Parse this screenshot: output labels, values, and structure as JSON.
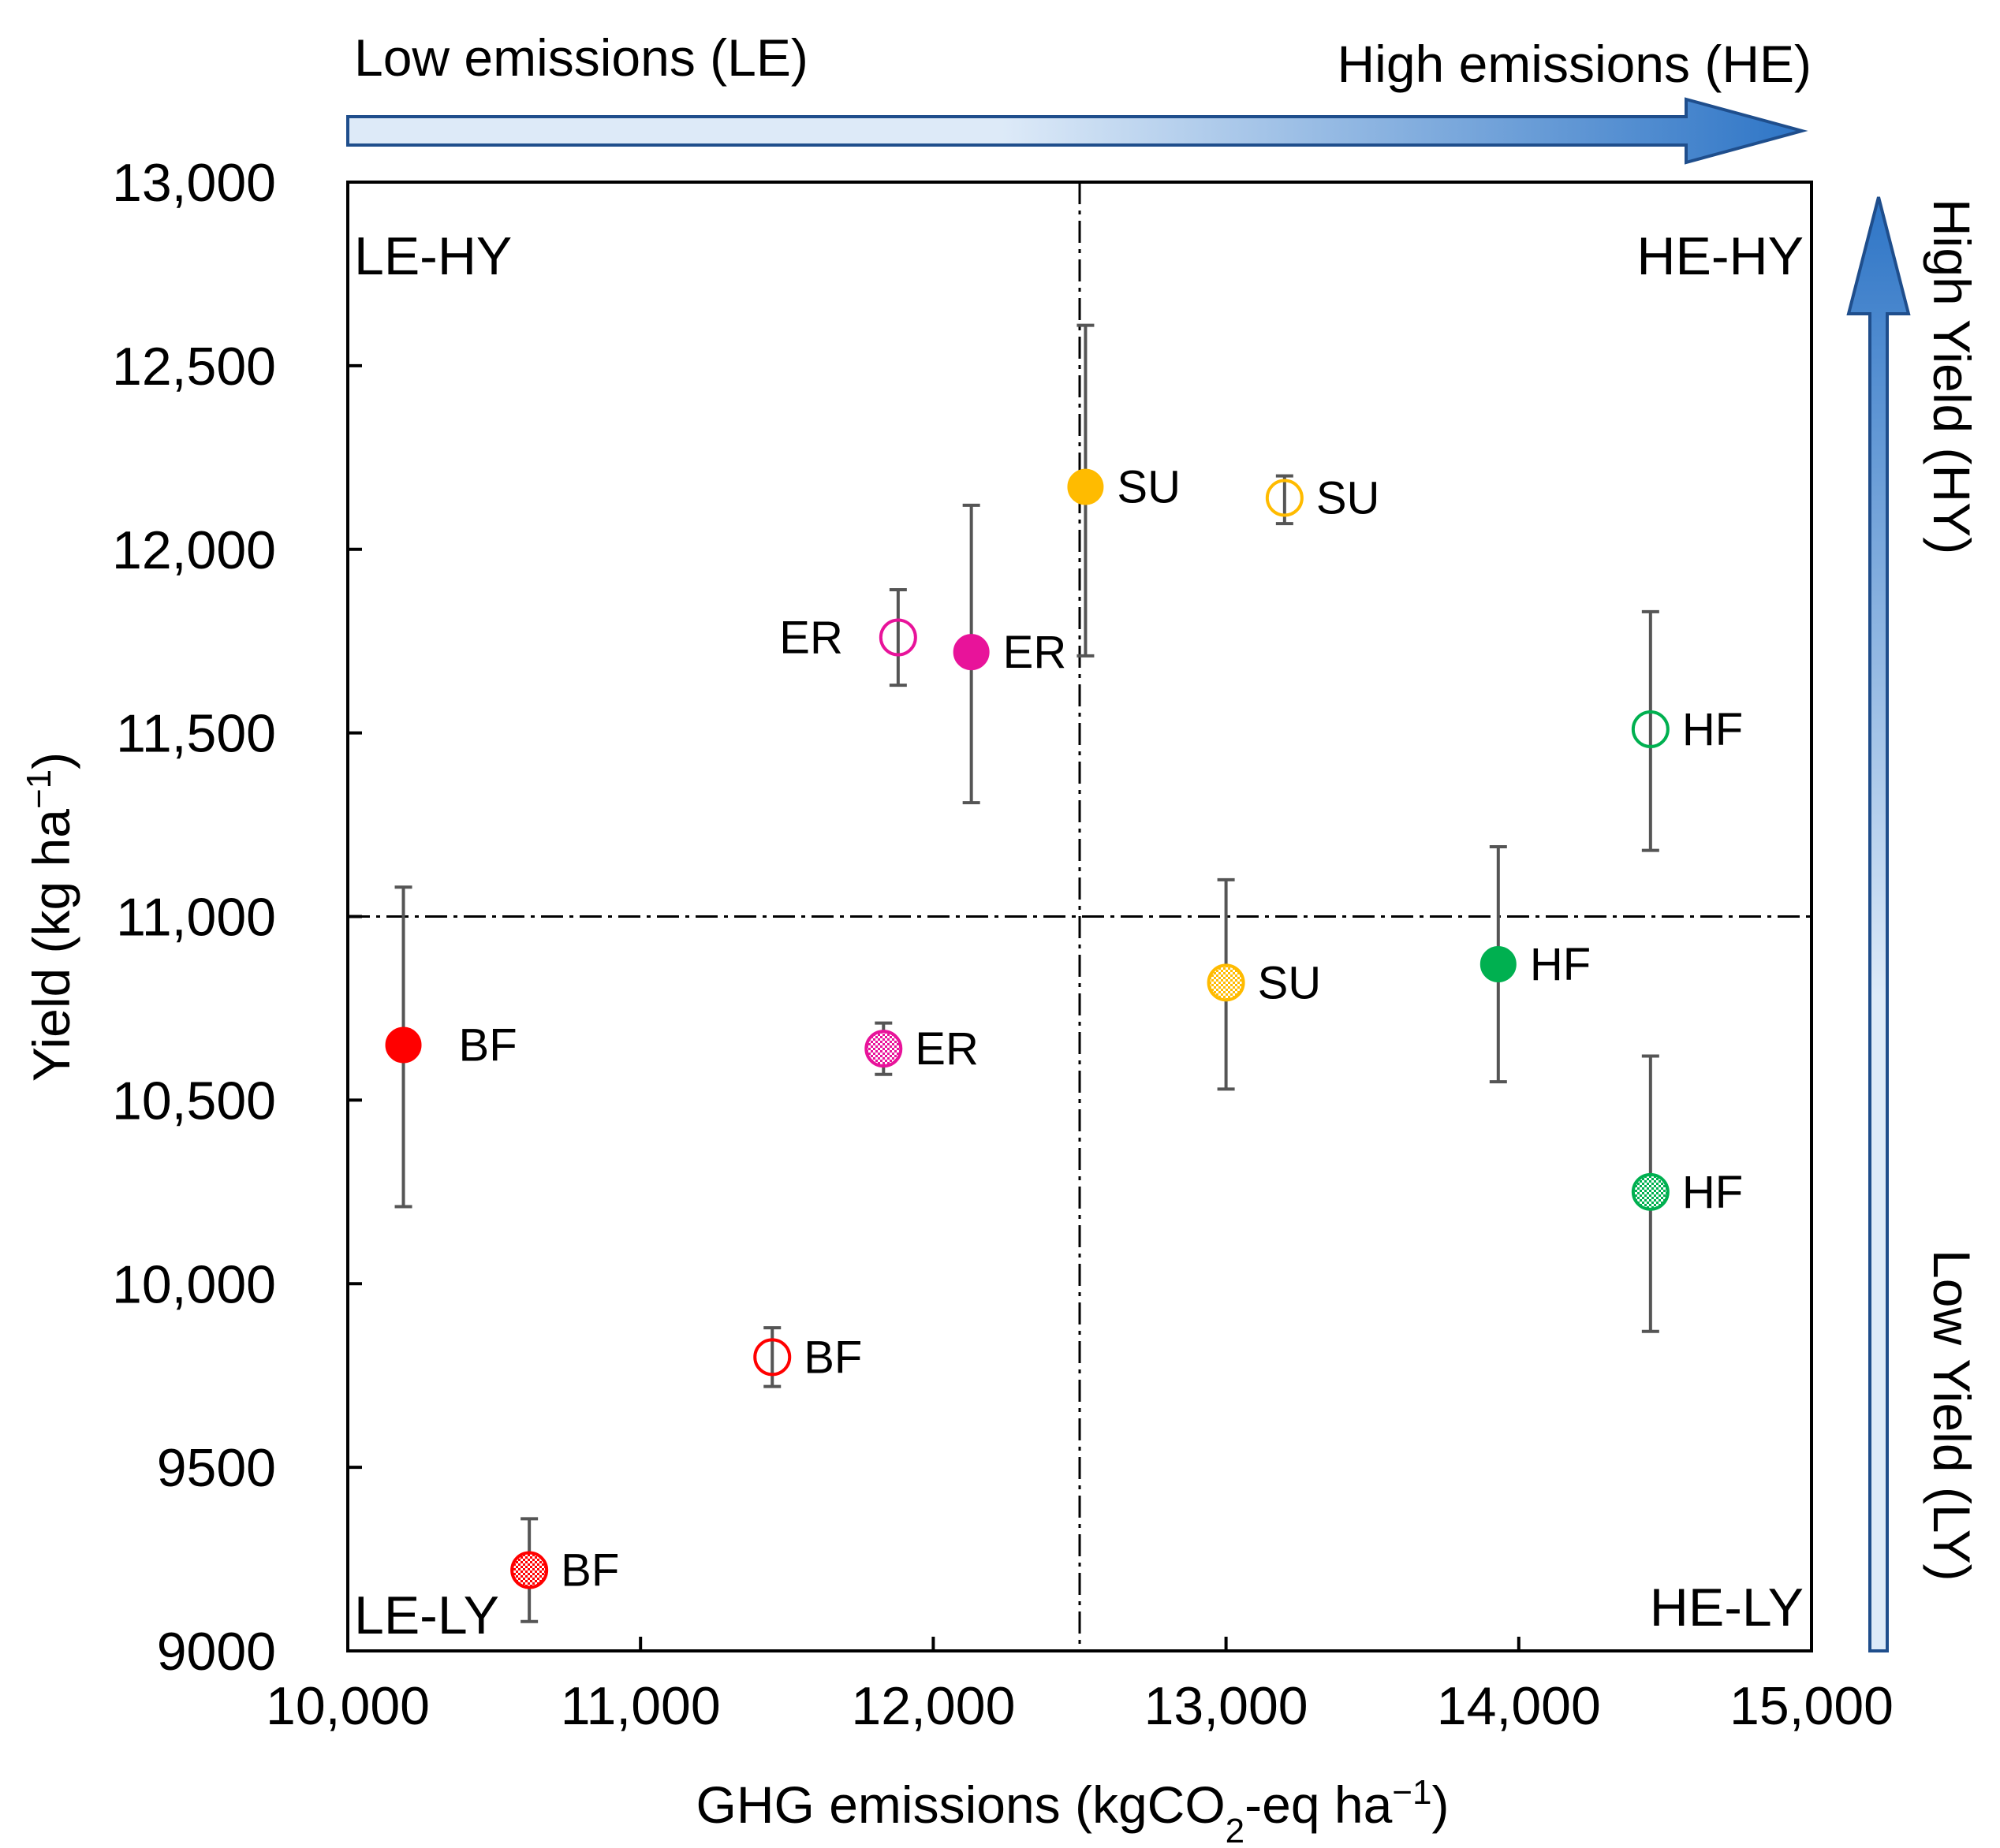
{
  "chart_data": {
    "type": "scatter",
    "xlabel": "GHG emissions (kgCO₂-eq ha⁻¹)",
    "xlabel_parts": {
      "main": "GHG emissions (kgCO",
      "sub": "2",
      "rest": "-eq ha",
      "sup": "−1",
      "close": ")"
    },
    "ylabel": "Yield  (kg ha⁻¹)",
    "ylabel_parts": {
      "main": "Yield  (kg ha",
      "sup": "−1",
      "close": ")"
    },
    "xlim": [
      10000,
      15000
    ],
    "ylim": [
      9000,
      13000
    ],
    "x_ticks": [
      10000,
      11000,
      12000,
      13000,
      14000,
      15000
    ],
    "x_tick_labels": [
      "10,000",
      "11,000",
      "12,000",
      "13,000",
      "14,000",
      "15,000"
    ],
    "y_ticks": [
      9000,
      9500,
      10000,
      10500,
      11000,
      11500,
      12000,
      12500,
      13000
    ],
    "y_tick_labels": [
      "9000",
      "9500",
      "10,000",
      "10,500",
      "11,000",
      "11,500",
      "12,000",
      "12,500",
      "13,000"
    ],
    "grid": false,
    "reference_lines": {
      "x": 12500,
      "y": 11000,
      "style": "dash-dot"
    },
    "quadrants": {
      "top_left": "LE-HY",
      "top_right": "HE-HY",
      "bottom_left": "LE-LY",
      "bottom_right": "HE-LY"
    },
    "emissions_arrow": {
      "low_label": "Low emissions (LE)",
      "high_label": "High emissions (HE)"
    },
    "yield_arrow": {
      "high_label": "High Yield (HY)",
      "low_label": "Low Yield (LY)"
    },
    "colors": {
      "BF": "#ff0000",
      "ER": "#e8139a",
      "SU": "#ffbb00",
      "HF": "#00b050",
      "errorbar": "#555555",
      "arrow_start": "#ddeaf8",
      "arrow_end": "#2e75c6",
      "arrow_stroke": "#1f4e8c"
    },
    "series": [
      {
        "name": "filled",
        "marker": "filled",
        "points": [
          {
            "label": "BF",
            "x": 10190,
            "y": 10650,
            "yerr_low": 10210,
            "yerr_high": 11080,
            "label_pos": "right-far"
          },
          {
            "label": "ER",
            "x": 12130,
            "y": 11720,
            "yerr_low": 11310,
            "yerr_high": 12120,
            "label_pos": "right"
          },
          {
            "label": "SU",
            "x": 12520,
            "y": 12170,
            "yerr_low": 11710,
            "yerr_high": 12610,
            "label_pos": "right"
          },
          {
            "label": "HF",
            "x": 13930,
            "y": 10870,
            "yerr_low": 10550,
            "yerr_high": 11190,
            "label_pos": "right"
          }
        ]
      },
      {
        "name": "open",
        "marker": "open",
        "points": [
          {
            "label": "BF",
            "x": 11450,
            "y": 9800,
            "yerr_low": 9720,
            "yerr_high": 9880,
            "label_pos": "right"
          },
          {
            "label": "ER",
            "x": 11880,
            "y": 11760,
            "yerr_low": 11630,
            "yerr_high": 11890,
            "label_pos": "left"
          },
          {
            "label": "SU",
            "x": 13200,
            "y": 12140,
            "yerr_low": 12070,
            "yerr_high": 12200,
            "label_pos": "right"
          },
          {
            "label": "HF",
            "x": 14450,
            "y": 11510,
            "yerr_low": 11180,
            "yerr_high": 11830,
            "label_pos": "right"
          }
        ]
      },
      {
        "name": "checkered",
        "marker": "checkered",
        "points": [
          {
            "label": "BF",
            "x": 10620,
            "y": 9220,
            "yerr_low": 9080,
            "yerr_high": 9360,
            "label_pos": "right"
          },
          {
            "label": "ER",
            "x": 11830,
            "y": 10640,
            "yerr_low": 10570,
            "yerr_high": 10710,
            "label_pos": "right"
          },
          {
            "label": "SU",
            "x": 13000,
            "y": 10820,
            "yerr_low": 10530,
            "yerr_high": 11100,
            "label_pos": "right"
          },
          {
            "label": "HF",
            "x": 14450,
            "y": 10250,
            "yerr_low": 9870,
            "yerr_high": 10620,
            "label_pos": "right"
          }
        ]
      }
    ]
  }
}
